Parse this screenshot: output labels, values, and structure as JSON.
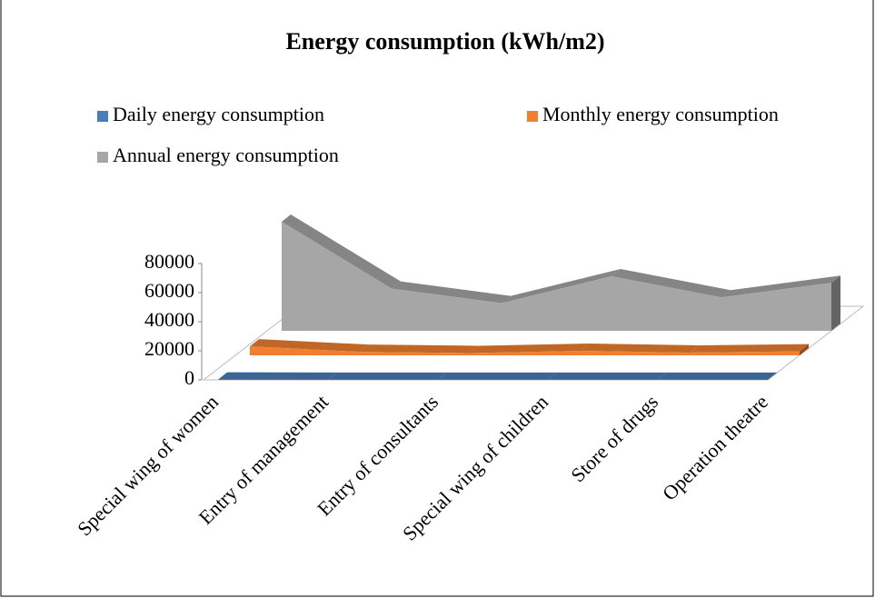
{
  "chart_data": {
    "type": "area3d",
    "title": "Energy consumption (kWh/m2)",
    "categories": [
      "Special wing of women",
      "Entry of management",
      "Entry of consultants",
      "Special wing of children",
      "Store of drugs",
      "Operation theatre"
    ],
    "series": [
      {
        "name": "Daily energy consumption",
        "color": "#4a7ebb",
        "values": [
          205,
          80,
          52,
          103,
          63,
          90
        ]
      },
      {
        "name": "Monthly energy consumption",
        "color": "#f07f30",
        "values": [
          6200,
          2400,
          1600,
          3100,
          1900,
          2750
        ]
      },
      {
        "name": "Annual energy consumption",
        "color": "#a6a6a6",
        "values": [
          75000,
          29000,
          19000,
          37500,
          23000,
          33000
        ]
      }
    ],
    "ylim": [
      0,
      80000
    ],
    "yticks": [
      0,
      20000,
      40000,
      60000,
      80000
    ]
  }
}
